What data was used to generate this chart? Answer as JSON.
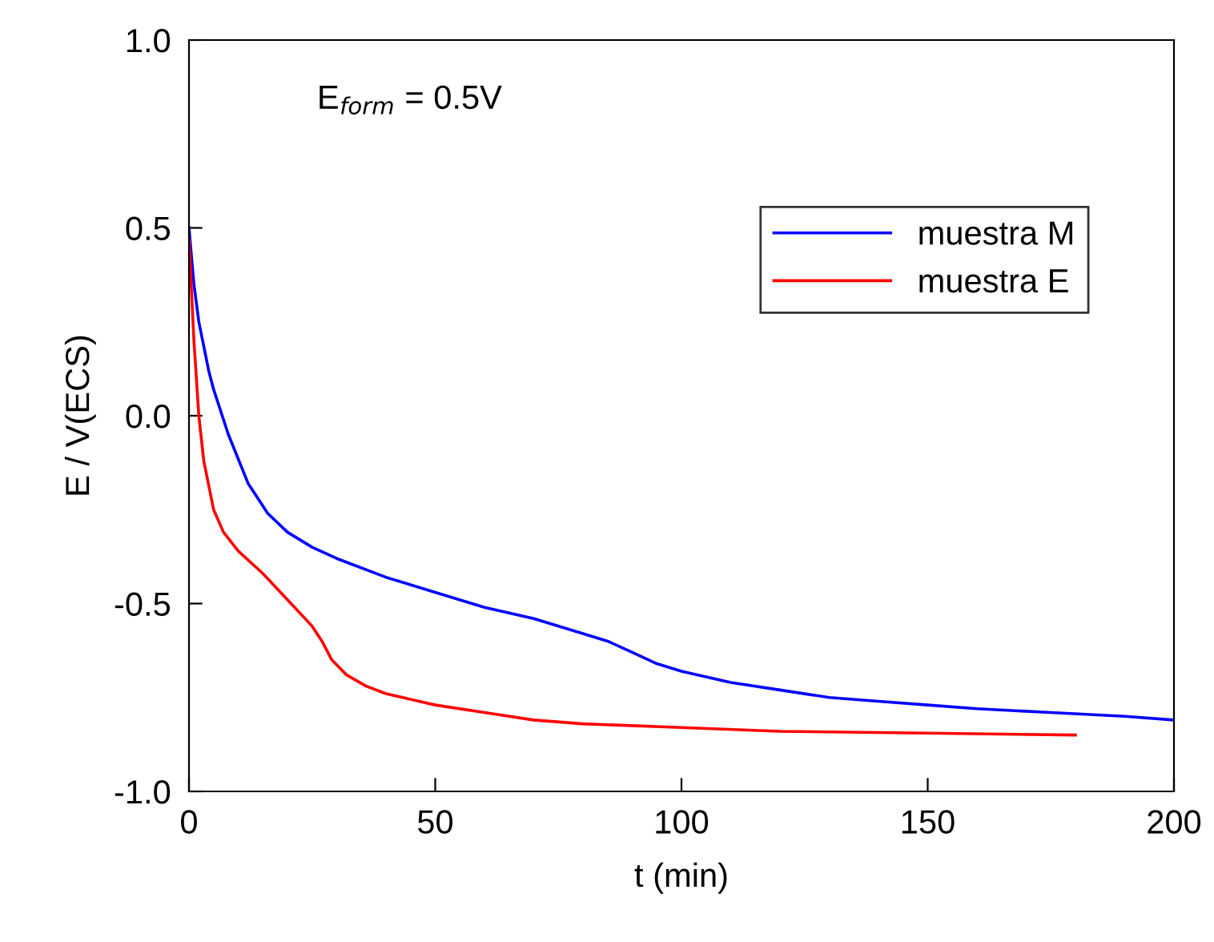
{
  "chart_data": {
    "type": "line",
    "xlabel": "t (min)",
    "ylabel": "E / V(ECS)",
    "xlim": [
      0,
      200
    ],
    "ylim": [
      -1.0,
      1.0
    ],
    "xticks": [
      0,
      50,
      100,
      150,
      200
    ],
    "yticks": [
      {
        "value": 1.0,
        "label": "1.0"
      },
      {
        "value": 0.5,
        "label": "0.5"
      },
      {
        "value": 0.0,
        "label": "0.0"
      },
      {
        "value": -0.5,
        "label": "-0.5"
      },
      {
        "value": -1.0,
        "label": "-1.0"
      }
    ],
    "annotations": [
      "E$_{form}$ = 0.5V"
    ],
    "legend": "top right",
    "grid": false,
    "marker": "none",
    "line_style": "solid",
    "series": [
      {
        "name": "muestra M",
        "color": "#0000ff",
        "x": [
          0,
          1,
          2,
          4,
          5,
          8,
          12,
          16,
          20,
          25,
          30,
          40,
          50,
          60,
          70,
          80,
          85,
          90,
          95,
          100,
          110,
          120,
          130,
          140,
          150,
          160,
          175,
          190,
          200
        ],
        "values": [
          0.5,
          0.35,
          0.25,
          0.12,
          0.07,
          -0.05,
          -0.18,
          -0.26,
          -0.31,
          -0.35,
          -0.38,
          -0.43,
          -0.47,
          -0.51,
          -0.54,
          -0.58,
          -0.6,
          -0.63,
          -0.66,
          -0.68,
          -0.71,
          -0.73,
          -0.75,
          -0.76,
          -0.77,
          -0.78,
          -0.79,
          -0.8,
          -0.81
        ]
      },
      {
        "name": "muestra E",
        "color": "#ff0000",
        "x": [
          0,
          1,
          2,
          3,
          5,
          7,
          10,
          15,
          20,
          25,
          27,
          29,
          32,
          36,
          40,
          50,
          60,
          70,
          80,
          100,
          120,
          150,
          180
        ],
        "values": [
          0.47,
          0.2,
          0.0,
          -0.12,
          -0.25,
          -0.31,
          -0.36,
          -0.42,
          -0.49,
          -0.56,
          -0.6,
          -0.65,
          -0.69,
          -0.72,
          -0.74,
          -0.77,
          -0.79,
          -0.81,
          -0.82,
          -0.83,
          -0.84,
          -0.845,
          -0.85
        ]
      }
    ]
  }
}
